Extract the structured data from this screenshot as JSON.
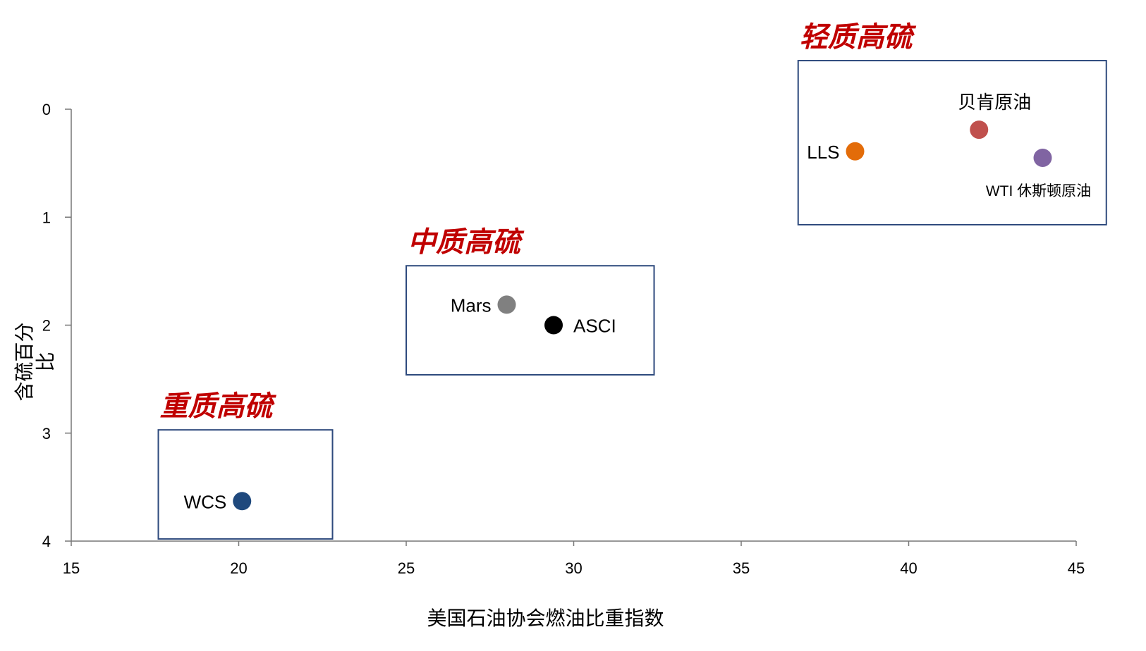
{
  "chart_data": {
    "type": "scatter",
    "xlabel": "美国石油协会燃油比重指数",
    "ylabel": "含硫百分比",
    "xlim": [
      15,
      45
    ],
    "ylim": [
      0,
      4
    ],
    "y_reversed": true,
    "x_ticks": [
      "15",
      "20",
      "25",
      "30",
      "35",
      "40",
      "45"
    ],
    "y_ticks": [
      "0",
      "1",
      "2",
      "3",
      "4"
    ],
    "points": [
      {
        "label": "LLS",
        "x": 38.4,
        "y": 0.39,
        "color": "#E36C09",
        "label_side": "left"
      },
      {
        "label": "贝肯原油",
        "x": 42.1,
        "y": 0.19,
        "color": "#C0504D",
        "label_side": "above"
      },
      {
        "label": "WTI 休斯顿原油",
        "x": 44.0,
        "y": 0.45,
        "color": "#8064A2",
        "label_side": "below"
      },
      {
        "label": "Mars",
        "x": 28.0,
        "y": 1.81,
        "color": "#808080",
        "label_side": "left"
      },
      {
        "label": "ASCI",
        "x": 29.4,
        "y": 2.0,
        "color": "#000000",
        "label_side": "right"
      },
      {
        "label": "WCS",
        "x": 20.1,
        "y": 3.63,
        "color": "#1F497D",
        "label_side": "left"
      }
    ],
    "groups": [
      {
        "title": "轻质高硫",
        "x_range": [
          36.7,
          45.9
        ],
        "y_range": [
          -0.45,
          1.07
        ]
      },
      {
        "title": "中质高硫",
        "x_range": [
          25.0,
          32.4
        ],
        "y_range": [
          1.45,
          2.46
        ]
      },
      {
        "title": "重质高硫",
        "x_range": [
          17.6,
          22.8
        ],
        "y_range": [
          2.97,
          3.98
        ]
      }
    ]
  }
}
